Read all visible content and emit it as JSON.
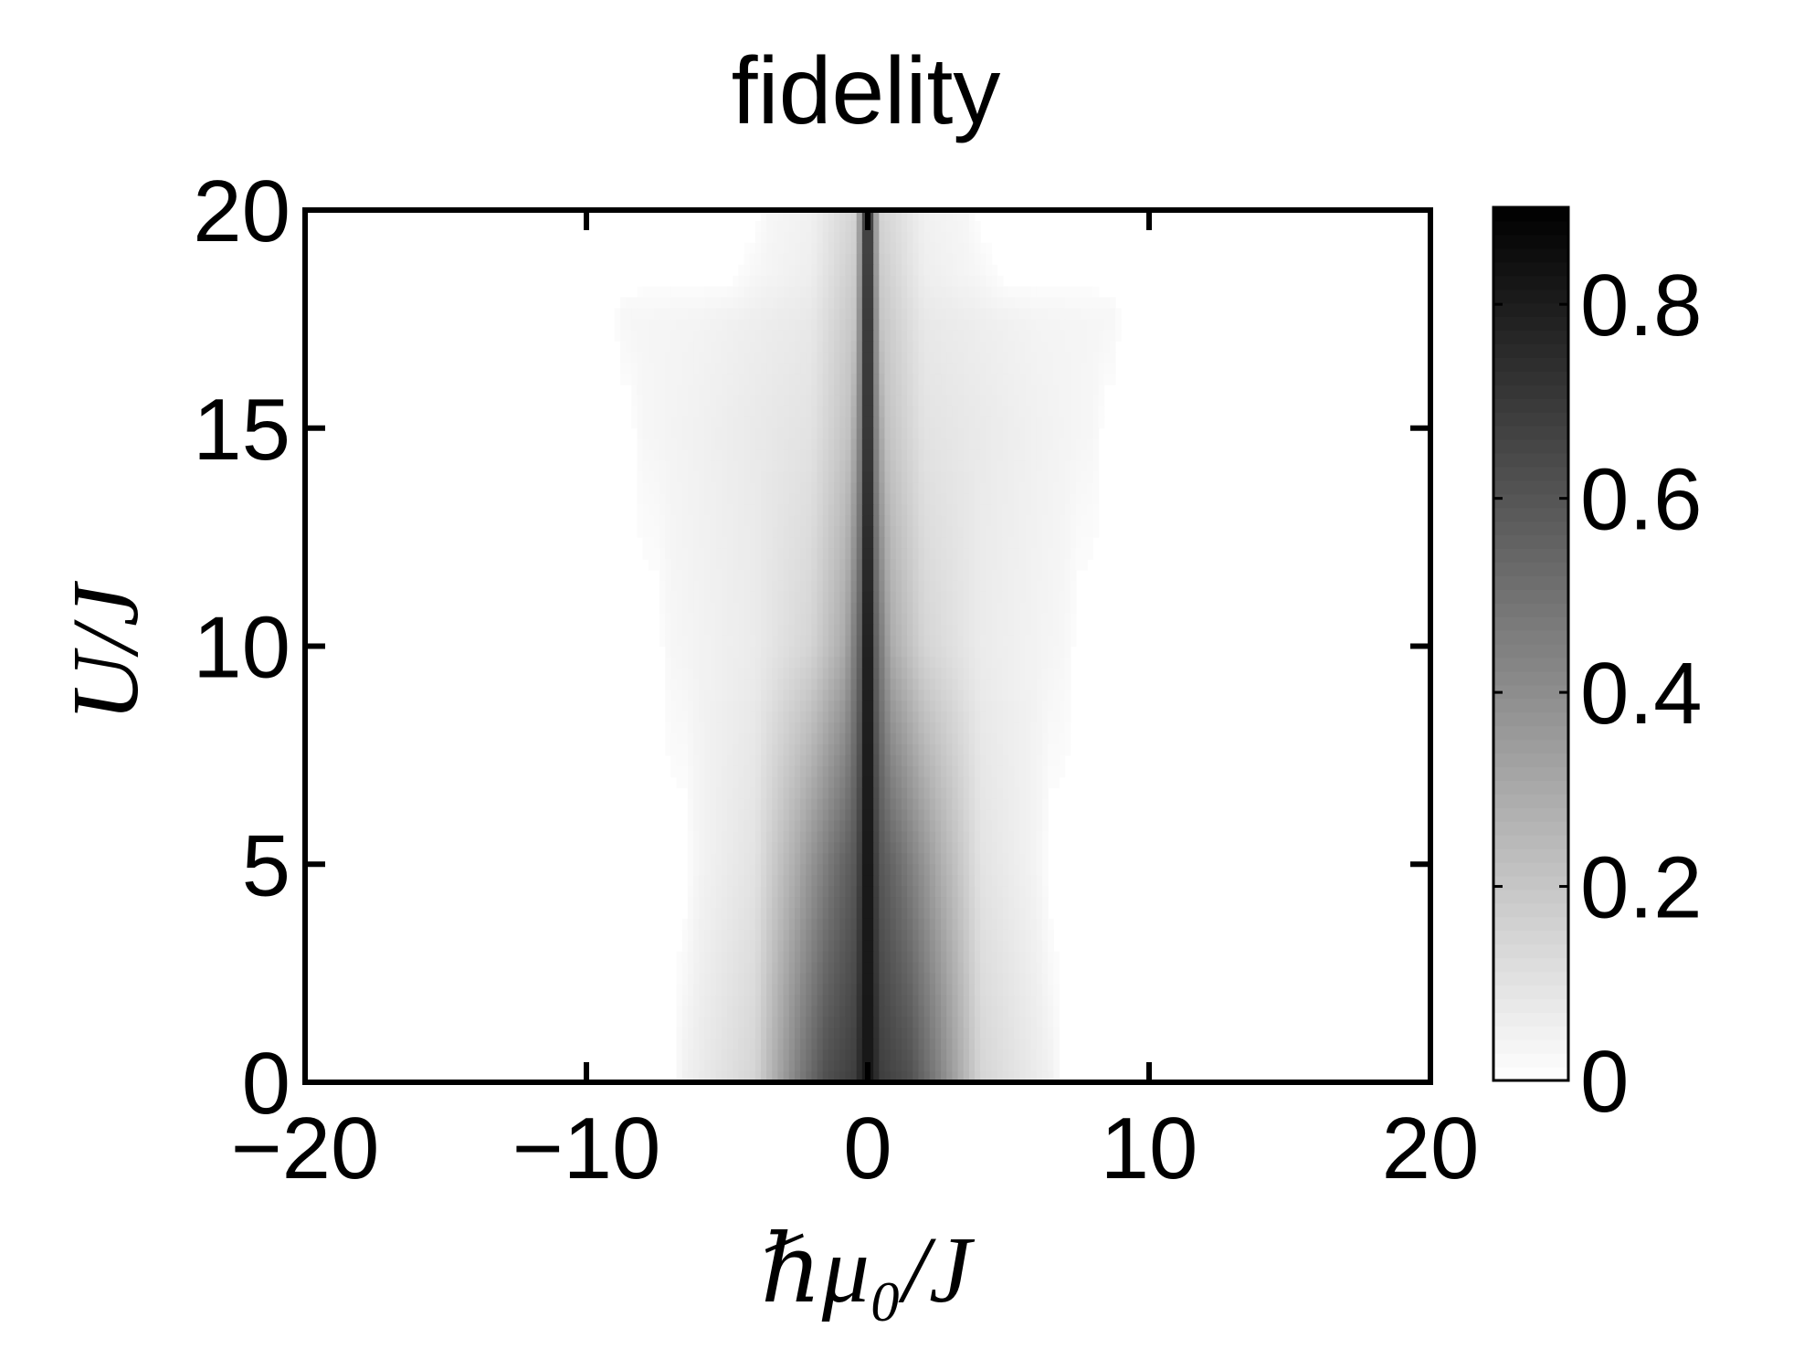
{
  "chart_data": {
    "type": "heatmap",
    "title": "fidelity",
    "xlabel": "ℏμ₀/J",
    "ylabel": "U/J",
    "xlim": [
      -20,
      20
    ],
    "ylim": [
      0,
      20
    ],
    "xticks": [
      -20,
      -10,
      0,
      10,
      20
    ],
    "xtick_labels": [
      "−20",
      "−10",
      "0",
      "10",
      "20"
    ],
    "yticks": [
      0,
      5,
      10,
      15,
      20
    ],
    "ytick_labels": [
      "0",
      "5",
      "10",
      "15",
      "20"
    ],
    "colorbar": {
      "range": [
        0,
        0.9
      ],
      "ticks": [
        0,
        0.2,
        0.4,
        0.6,
        0.8
      ],
      "tick_labels": [
        "0",
        "0.2",
        "0.4",
        "0.6",
        "0.8"
      ],
      "colormap": "gray (white = 0, black = max)"
    },
    "grid": false,
    "rows": [
      {
        "y": 0,
        "x": [
          -20,
          -7,
          -6.5,
          -4,
          -2.5,
          -1.5,
          -0.5,
          0,
          0.5,
          1.5,
          2.5,
          4,
          6.5,
          7,
          20
        ],
        "values": [
          0,
          0,
          0.05,
          0.15,
          0.45,
          0.62,
          0.68,
          0.85,
          0.68,
          0.62,
          0.45,
          0.15,
          0.05,
          0,
          0
        ]
      },
      {
        "y": 5,
        "x": [
          -20,
          -6.5,
          -6,
          -4,
          -2.5,
          -1.2,
          -0.4,
          0,
          0.4,
          1.2,
          2.5,
          4,
          6,
          6.5,
          20
        ],
        "values": [
          0,
          0,
          0.04,
          0.1,
          0.3,
          0.5,
          0.6,
          0.88,
          0.6,
          0.5,
          0.3,
          0.1,
          0.04,
          0,
          0
        ]
      },
      {
        "y": 10,
        "x": [
          -20,
          -7.5,
          -7,
          -4,
          -2,
          -0.8,
          -0.3,
          0,
          0.3,
          0.8,
          2,
          4,
          7,
          7.5,
          20
        ],
        "values": [
          0,
          0,
          0.03,
          0.07,
          0.15,
          0.3,
          0.55,
          0.9,
          0.55,
          0.3,
          0.15,
          0.07,
          0.03,
          0,
          0
        ]
      },
      {
        "y": 15,
        "x": [
          -20,
          -8.5,
          -8,
          -6,
          -2,
          -0.6,
          -0.2,
          0,
          0.2,
          0.6,
          2,
          6,
          8,
          8.5,
          20
        ],
        "values": [
          0,
          0,
          0.03,
          0.05,
          0.1,
          0.22,
          0.5,
          0.9,
          0.5,
          0.22,
          0.1,
          0.05,
          0.03,
          0,
          0
        ]
      },
      {
        "y": 17.5,
        "x": [
          -20,
          -9,
          -8.8,
          -6,
          -2,
          -0.5,
          -0.2,
          0,
          0.2,
          0.5,
          2,
          6,
          8.8,
          9,
          20
        ],
        "values": [
          0,
          0,
          0.03,
          0.04,
          0.08,
          0.2,
          0.48,
          0.9,
          0.48,
          0.2,
          0.08,
          0.04,
          0.03,
          0,
          0
        ]
      },
      {
        "y": 18.5,
        "x": [
          -20,
          -5,
          -4,
          -2,
          -0.5,
          -0.2,
          0,
          0.2,
          0.5,
          2,
          4,
          5,
          20
        ],
        "values": [
          0,
          0,
          0.03,
          0.06,
          0.18,
          0.45,
          0.9,
          0.45,
          0.18,
          0.06,
          0.03,
          0,
          0
        ]
      },
      {
        "y": 20,
        "x": [
          -20,
          -4,
          -3.5,
          -2,
          -0.5,
          -0.2,
          0,
          0.2,
          0.5,
          2,
          3.5,
          4,
          20
        ],
        "values": [
          0,
          0,
          0.03,
          0.05,
          0.15,
          0.42,
          0.9,
          0.42,
          0.15,
          0.05,
          0.03,
          0,
          0
        ]
      }
    ]
  }
}
